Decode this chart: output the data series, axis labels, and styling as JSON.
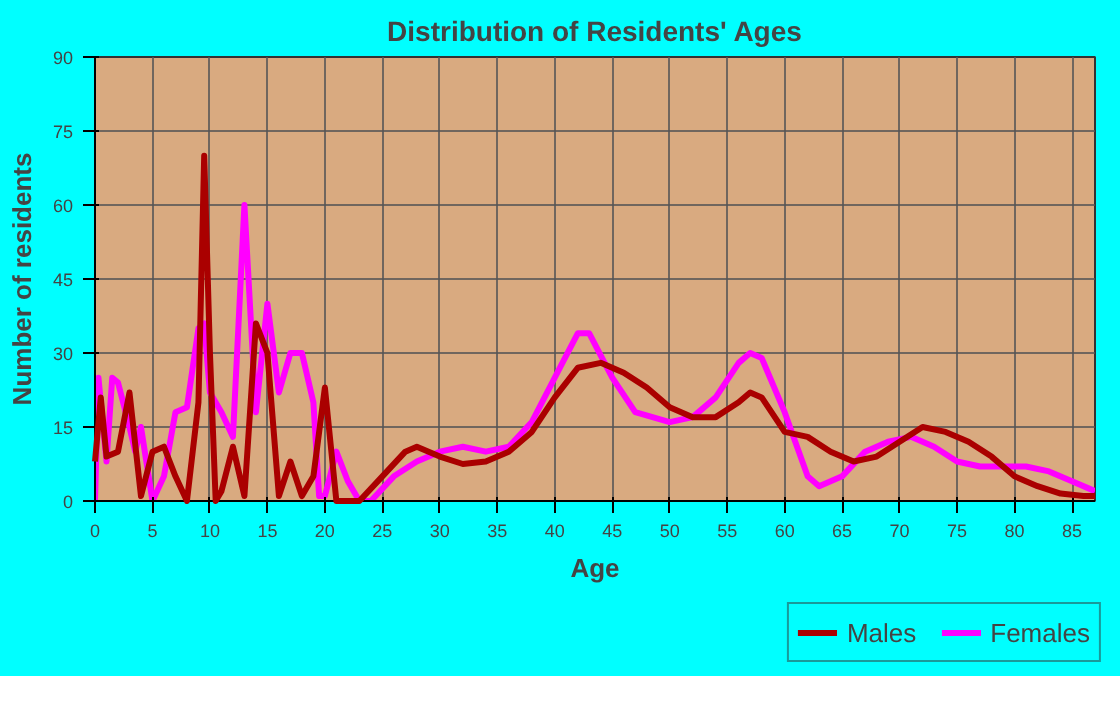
{
  "chart_data": {
    "type": "line",
    "title": "Distribution of Residents' Ages",
    "xlabel": "Age",
    "ylabel": "Number of residents",
    "xlim": [
      0,
      87
    ],
    "xticks": [
      0,
      5,
      10,
      15,
      20,
      25,
      30,
      35,
      40,
      45,
      50,
      55,
      60,
      65,
      70,
      75,
      80,
      85
    ],
    "ylim": [
      0,
      90
    ],
    "yticks": [
      0,
      15,
      30,
      45,
      60,
      75,
      90
    ],
    "grid": true,
    "legend": "bottom right",
    "marker": "none",
    "line_style": "solid",
    "series": [
      {
        "name": "Males",
        "color": "#aa0000",
        "x": [
          0,
          0.5,
          1,
          2,
          3,
          4,
          5,
          6,
          7,
          8,
          9,
          9.5,
          10,
          10.5,
          11,
          12,
          13,
          14,
          15,
          16,
          17,
          18,
          19,
          20,
          21,
          22,
          23,
          25,
          27,
          28,
          30,
          32,
          34,
          36,
          38,
          40,
          42,
          44,
          46,
          48,
          50,
          52,
          54,
          56,
          57,
          58,
          60,
          62,
          64,
          66,
          68,
          70,
          72,
          74,
          76,
          78,
          80,
          82,
          84,
          86,
          87
        ],
        "values": [
          8,
          21,
          9,
          10,
          22,
          1,
          10,
          11,
          5,
          0,
          20,
          70,
          30,
          0,
          2,
          11,
          1,
          36,
          30,
          1,
          8,
          1,
          5,
          23,
          0,
          0,
          0,
          5,
          10,
          11,
          9,
          7.5,
          8,
          10,
          14,
          21,
          27,
          28,
          26,
          23,
          19,
          17,
          17,
          20,
          22,
          21,
          14,
          13,
          10,
          8,
          9,
          12,
          15,
          14,
          12,
          9,
          5,
          3,
          1.5,
          1,
          1
        ]
      },
      {
        "name": "Females",
        "color": "#ff00ff",
        "x": [
          0,
          0.3,
          1,
          1.5,
          2,
          3,
          3.5,
          4,
          5,
          6,
          7,
          8,
          9,
          9.5,
          10,
          11,
          12,
          13,
          14,
          15,
          16,
          17,
          18,
          19,
          19.5,
          20,
          21,
          22,
          23,
          24,
          26,
          28,
          30,
          32,
          34,
          36,
          38,
          40,
          42,
          43,
          45,
          47,
          50,
          52,
          54,
          56,
          57,
          58,
          60,
          62,
          63,
          65,
          67,
          69,
          71,
          73,
          75,
          77,
          79,
          81,
          83,
          85,
          87
        ],
        "values": [
          0,
          25,
          8,
          25,
          24,
          15,
          10,
          15,
          0,
          5,
          18,
          19,
          35,
          36,
          22,
          18,
          13,
          60,
          18,
          40,
          22,
          30,
          30,
          20,
          1,
          1,
          10,
          4,
          0,
          0,
          5,
          8,
          10,
          11,
          10,
          11,
          16,
          25,
          34,
          34,
          25,
          18,
          16,
          17,
          21,
          28,
          30,
          29,
          18,
          5,
          3,
          5,
          10,
          12,
          13,
          11,
          8,
          7,
          7,
          7,
          6,
          4,
          2
        ]
      }
    ]
  }
}
